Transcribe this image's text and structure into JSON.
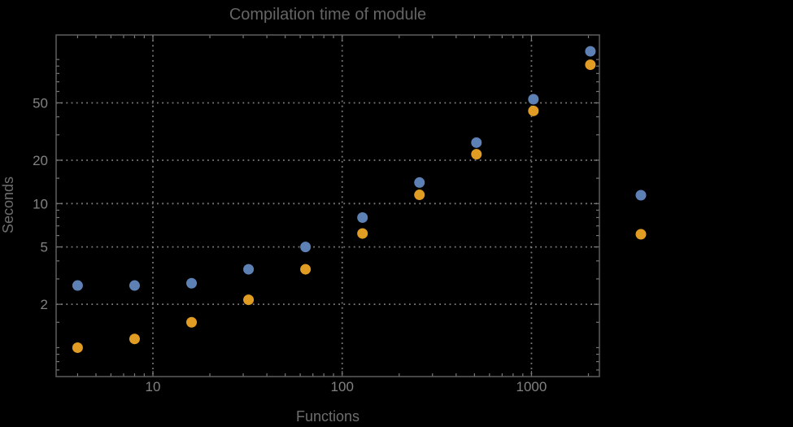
{
  "chart_data": {
    "type": "scatter",
    "title": "Compilation time of module",
    "xlabel": "Functions",
    "ylabel": "Seconds",
    "x_scale": "log",
    "y_scale": "log",
    "xlim": [
      3.08,
      2286
    ],
    "ylim": [
      0.63,
      148
    ],
    "grid": {
      "style": "dotted",
      "x_values": [
        10,
        100,
        1000
      ],
      "y_values": [
        2,
        5,
        10,
        20,
        50
      ]
    },
    "x_major_ticks": [
      10,
      100,
      1000
    ],
    "x_major_labels": [
      "10",
      "100",
      "1000"
    ],
    "x_minor_ticks": [
      4,
      5,
      6,
      7,
      8,
      9,
      20,
      30,
      40,
      50,
      60,
      70,
      80,
      90,
      200,
      300,
      400,
      500,
      600,
      700,
      800,
      900,
      2000
    ],
    "y_major_ticks": [
      2,
      5,
      10,
      20,
      50
    ],
    "y_major_labels": [
      "2",
      "5",
      "10",
      "20",
      "50"
    ],
    "y_minor_ticks": [
      0.7,
      0.8,
      0.9,
      1,
      1.5,
      3,
      4,
      6,
      7,
      8,
      9,
      15,
      30,
      40,
      60,
      70,
      80,
      90,
      100
    ],
    "x": [
      4,
      8,
      16,
      32,
      64,
      128,
      256,
      512,
      1024,
      2048
    ],
    "series": [
      {
        "name": "blue",
        "color": "#5e81b5",
        "values": [
          2.7,
          2.7,
          2.8,
          3.5,
          5.0,
          8.0,
          14.0,
          26.5,
          53,
          114
        ]
      },
      {
        "name": "orange",
        "color": "#e19c24",
        "values": [
          1.0,
          1.15,
          1.5,
          2.15,
          3.5,
          6.2,
          11.5,
          22,
          44,
          92
        ]
      }
    ],
    "legend": {
      "position": "right-outside",
      "markers": [
        {
          "series": "blue",
          "color": "#5e81b5"
        },
        {
          "series": "orange",
          "color": "#e19c24"
        }
      ]
    }
  },
  "colors": {
    "background": "#000000",
    "frame": "#5e5e5e",
    "grid": "#8a8a8a",
    "tick": "#787878",
    "tick_label": "#828282",
    "title": "#656565",
    "axis_label": "#6e6e6e",
    "series_blue": "#5e81b5",
    "series_orange": "#e19c24"
  }
}
